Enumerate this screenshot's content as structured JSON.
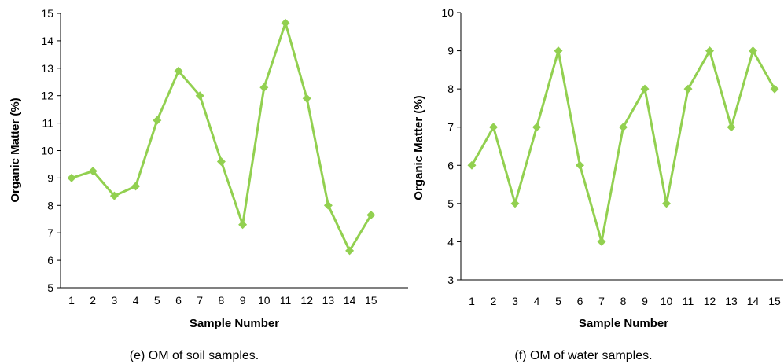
{
  "chart_data": [
    {
      "type": "line",
      "caption": "(e) OM of soil samples.",
      "xlabel": "Sample Number",
      "ylabel": "Organic Matter (%)",
      "categories": [
        "1",
        "2",
        "3",
        "4",
        "5",
        "6",
        "7",
        "8",
        "9",
        "10",
        "11",
        "12",
        "13",
        "14",
        "15"
      ],
      "ylim": [
        5,
        15
      ],
      "yticks": [
        "5",
        "6",
        "7",
        "8",
        "9",
        "10",
        "11",
        "12",
        "13",
        "14",
        "15"
      ],
      "series": [
        {
          "values": [
            9.0,
            9.25,
            8.35,
            8.7,
            11.1,
            12.9,
            12.0,
            9.6,
            7.3,
            12.3,
            14.65,
            11.9,
            8.0,
            6.35,
            7.65
          ]
        }
      ],
      "grid": false,
      "color": "#92d050",
      "marker": "diamond"
    },
    {
      "type": "line",
      "caption": "(f) OM of water samples.",
      "xlabel": "Sample Number",
      "ylabel": "Organic Matter (%)",
      "categories": [
        "1",
        "2",
        "3",
        "4",
        "5",
        "6",
        "7",
        "8",
        "9",
        "10",
        "11",
        "12",
        "13",
        "14",
        "15"
      ],
      "ylim": [
        3,
        10
      ],
      "yticks": [
        "3",
        "4",
        "5",
        "6",
        "7",
        "8",
        "9",
        "10"
      ],
      "series": [
        {
          "values": [
            6,
            7,
            5,
            7,
            9,
            6,
            4,
            7,
            8,
            5,
            8,
            9,
            7,
            9,
            8
          ]
        }
      ],
      "grid": false,
      "color": "#92d050",
      "marker": "diamond"
    }
  ]
}
